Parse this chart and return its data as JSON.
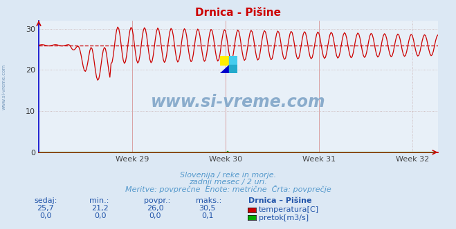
{
  "title": "Drnica - Pišine",
  "bg_color": "#dce8f4",
  "plot_bg_color": "#e8f0f8",
  "grid_color_major": "#c8b0b0",
  "grid_color_minor": "#d8c8c8",
  "ylim": [
    0,
    32
  ],
  "yticks": [
    0,
    10,
    20,
    30
  ],
  "x_tick_labels": [
    "Week 29",
    "Week 30",
    "Week 31",
    "Week 32"
  ],
  "temp_avg": 26.0,
  "temp_min": 21.2,
  "temp_max": 30.5,
  "temp_current": 25.7,
  "flow_max": 0.1,
  "temp_line_color": "#cc0000",
  "flow_line_color": "#009900",
  "watermark_color": "#8aaccc",
  "subtitle_color": "#5599cc",
  "label_color": "#2255aa",
  "swatch_temp_color": "#cc0000",
  "swatch_flow_color": "#00aa00",
  "n_points": 360,
  "temp_base": 26.0,
  "temp_period": 12,
  "subtitle1": "Slovenija / reke in morje.",
  "subtitle2": "zadnji mesec / 2 uri.",
  "subtitle3": "Meritve: povprečne  Enote: metrične  Črta: povprečje",
  "stat_headers": [
    "sedaj:",
    "min.:",
    "povpr.:",
    "maks.:",
    "Drnica – Pišine"
  ],
  "stat_row1": [
    "25,7",
    "21,2",
    "26,0",
    "30,5"
  ],
  "stat_row2": [
    "0,0",
    "0,0",
    "0,0",
    "0,1"
  ],
  "stat_label1": "temperatura[C]",
  "stat_label2": "pretok[m3/s]"
}
